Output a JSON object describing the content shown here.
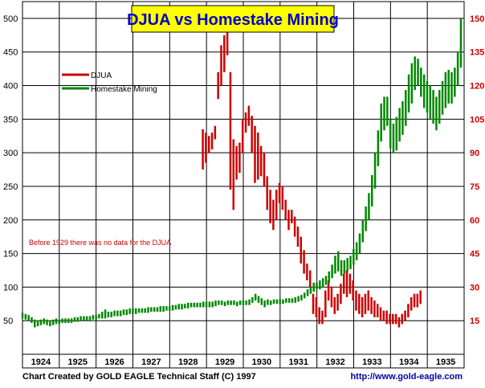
{
  "chart_data": {
    "type": "bar",
    "title": "DJUA vs Homestake Mining",
    "categories": [
      "1924",
      "1925",
      "1926",
      "1927",
      "1928",
      "1929",
      "1930",
      "1931",
      "1932",
      "1933",
      "1934",
      "1935"
    ],
    "ylim_left": [
      0,
      525
    ],
    "yticks_left": [
      50,
      100,
      150,
      200,
      250,
      300,
      350,
      400,
      450,
      500
    ],
    "ylim_right": [
      0,
      157.5
    ],
    "yticks_right": [
      15,
      30,
      45,
      60,
      75,
      90,
      105,
      120,
      135,
      150
    ],
    "grid": true,
    "legend_position": "top-left",
    "annotation": "Before 1929 there was no data for the DJUA",
    "series": [
      {
        "name": "DJUA",
        "color": "#cc0000",
        "axis": "left",
        "start": 1928.9,
        "step": 0.0833,
        "bars": [
          [
            275,
            335
          ],
          [
            285,
            330
          ],
          [
            300,
            325
          ],
          [
            305,
            330
          ],
          [
            320,
            340
          ],
          [
            380,
            420
          ],
          [
            400,
            460
          ],
          [
            420,
            475
          ],
          [
            445,
            485
          ],
          [
            245,
            420
          ],
          [
            215,
            320
          ],
          [
            260,
            310
          ],
          [
            270,
            315
          ],
          [
            300,
            350
          ],
          [
            330,
            360
          ],
          [
            340,
            370
          ],
          [
            300,
            355
          ],
          [
            255,
            340
          ],
          [
            260,
            330
          ],
          [
            265,
            310
          ],
          [
            250,
            300
          ],
          [
            215,
            265
          ],
          [
            195,
            245
          ],
          [
            185,
            230
          ],
          [
            200,
            245
          ],
          [
            225,
            255
          ],
          [
            215,
            250
          ],
          [
            200,
            230
          ],
          [
            185,
            215
          ],
          [
            195,
            215
          ],
          [
            175,
            205
          ],
          [
            160,
            190
          ],
          [
            135,
            175
          ],
          [
            120,
            155
          ],
          [
            110,
            135
          ],
          [
            100,
            125
          ],
          [
            60,
            90
          ],
          [
            55,
            85
          ],
          [
            45,
            70
          ],
          [
            45,
            65
          ],
          [
            55,
            95
          ],
          [
            80,
            110
          ],
          [
            70,
            100
          ],
          [
            60,
            85
          ],
          [
            65,
            90
          ],
          [
            75,
            105
          ],
          [
            90,
            120
          ],
          [
            85,
            125
          ],
          [
            90,
            120
          ],
          [
            80,
            110
          ],
          [
            65,
            95
          ],
          [
            60,
            90
          ],
          [
            55,
            85
          ],
          [
            60,
            90
          ],
          [
            65,
            95
          ],
          [
            60,
            85
          ],
          [
            55,
            80
          ],
          [
            55,
            75
          ],
          [
            50,
            70
          ],
          [
            50,
            65
          ],
          [
            45,
            65
          ],
          [
            45,
            60
          ],
          [
            45,
            60
          ],
          [
            45,
            60
          ],
          [
            40,
            55
          ],
          [
            45,
            60
          ],
          [
            50,
            65
          ],
          [
            55,
            75
          ],
          [
            65,
            85
          ],
          [
            70,
            90
          ],
          [
            70,
            90
          ],
          [
            75,
            95
          ]
        ]
      },
      {
        "name": "Homestake Mining",
        "color": "#008800",
        "axis": "right",
        "start": 1924.0,
        "step": 0.0833,
        "bars": [
          [
            16,
            18.5
          ],
          [
            15.5,
            18
          ],
          [
            15,
            17.5
          ],
          [
            14,
            16.5
          ],
          [
            12,
            15.5
          ],
          [
            12.5,
            15
          ],
          [
            13,
            15.5
          ],
          [
            13.5,
            16
          ],
          [
            13,
            15.5
          ],
          [
            12.5,
            15
          ],
          [
            13,
            15.5
          ],
          [
            13.5,
            16
          ],
          [
            13.5,
            15.5
          ],
          [
            14,
            16
          ],
          [
            14,
            16
          ],
          [
            14,
            16
          ],
          [
            14,
            16
          ],
          [
            14.5,
            16.5
          ],
          [
            14.5,
            16.5
          ],
          [
            15,
            17
          ],
          [
            15,
            17
          ],
          [
            15,
            17
          ],
          [
            15,
            17
          ],
          [
            15.5,
            17.5
          ],
          [
            15.5,
            17.5
          ],
          [
            16,
            18
          ],
          [
            16,
            19
          ],
          [
            16,
            20
          ],
          [
            16.5,
            19
          ],
          [
            16.5,
            19
          ],
          [
            17,
            19.5
          ],
          [
            17,
            19.5
          ],
          [
            17,
            19.5
          ],
          [
            17.5,
            20
          ],
          [
            17.5,
            20
          ],
          [
            18,
            20.5
          ],
          [
            18,
            20.5
          ],
          [
            18,
            20.5
          ],
          [
            18.5,
            20.5
          ],
          [
            18.5,
            20.5
          ],
          [
            18.5,
            20.5
          ],
          [
            18.5,
            21
          ],
          [
            19,
            21
          ],
          [
            19,
            21
          ],
          [
            19,
            21
          ],
          [
            19,
            21.5
          ],
          [
            19,
            21.5
          ],
          [
            19.5,
            21.5
          ],
          [
            19.5,
            21.5
          ],
          [
            19.5,
            22
          ],
          [
            20,
            22
          ],
          [
            20,
            22.5
          ],
          [
            20,
            22.5
          ],
          [
            20.5,
            22.5
          ],
          [
            20.5,
            23
          ],
          [
            21,
            23
          ],
          [
            21,
            23
          ],
          [
            21,
            23
          ],
          [
            21,
            23
          ],
          [
            21,
            23.5
          ],
          [
            21,
            23.5
          ],
          [
            21,
            23.5
          ],
          [
            21,
            23.5
          ],
          [
            21.5,
            24
          ],
          [
            22,
            24
          ],
          [
            22,
            24
          ],
          [
            21.5,
            23.5
          ],
          [
            22,
            24
          ],
          [
            22,
            24
          ],
          [
            22,
            24
          ],
          [
            21.5,
            23.5
          ],
          [
            22,
            24
          ],
          [
            22,
            24
          ],
          [
            22,
            24
          ],
          [
            22,
            24.5
          ],
          [
            23,
            25.5
          ],
          [
            24,
            27
          ],
          [
            23,
            26
          ],
          [
            22,
            25
          ],
          [
            21,
            24
          ],
          [
            22,
            24.5
          ],
          [
            22,
            24
          ],
          [
            22.5,
            24.5
          ],
          [
            22.5,
            24.5
          ],
          [
            22.5,
            24.5
          ],
          [
            22.5,
            24.5
          ],
          [
            23,
            25
          ],
          [
            23,
            25
          ],
          [
            23,
            25
          ],
          [
            23,
            25.5
          ],
          [
            23.5,
            26
          ],
          [
            24,
            26.5
          ],
          [
            25,
            27.5
          ],
          [
            26,
            29
          ],
          [
            27,
            30
          ],
          [
            28,
            32
          ],
          [
            29,
            32
          ],
          [
            29,
            33
          ],
          [
            30,
            34
          ],
          [
            31,
            35
          ],
          [
            32,
            37
          ],
          [
            34,
            40
          ],
          [
            36,
            44
          ],
          [
            37,
            46
          ],
          [
            35,
            42
          ],
          [
            36,
            42
          ],
          [
            37,
            43
          ],
          [
            38,
            44
          ],
          [
            40,
            47
          ],
          [
            42,
            50
          ],
          [
            45,
            54
          ],
          [
            50,
            60
          ],
          [
            55,
            66
          ],
          [
            60,
            72
          ],
          [
            66,
            80
          ],
          [
            74,
            90
          ],
          [
            84,
            100
          ],
          [
            95,
            112
          ],
          [
            100,
            115
          ],
          [
            102,
            115
          ],
          [
            92,
            105
          ],
          [
            90,
            103
          ],
          [
            91,
            106
          ],
          [
            95,
            110
          ],
          [
            98,
            113
          ],
          [
            102,
            118
          ],
          [
            108,
            125
          ],
          [
            112,
            130
          ],
          [
            118,
            133
          ],
          [
            120,
            132
          ],
          [
            115,
            128
          ],
          [
            110,
            125
          ],
          [
            108,
            122
          ],
          [
            105,
            120
          ],
          [
            103,
            118
          ],
          [
            100,
            115
          ],
          [
            103,
            118
          ],
          [
            107,
            122
          ],
          [
            110,
            126
          ],
          [
            112,
            127
          ],
          [
            112,
            126
          ],
          [
            115,
            128
          ],
          [
            120,
            135
          ],
          [
            128,
            150
          ]
        ]
      }
    ],
    "footer_left": "Chart Created by GOLD EAGLE Technical Staff (C) 1997",
    "footer_right": "http://www.gold-eagle.com"
  }
}
